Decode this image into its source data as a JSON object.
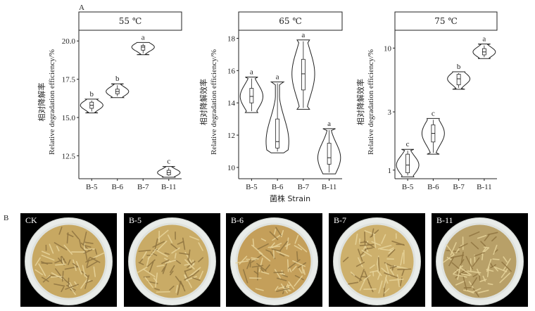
{
  "panel_labels": {
    "a": "A",
    "b": "B"
  },
  "y_axis_label_zh": "相对降解率",
  "y_axis_label_zh_alt": "相对降解效率",
  "y_axis_label_en": "Relative degradation efficiency/%",
  "x_axis_label": "菌株 Strain",
  "colors": {
    "ink": "#222222",
    "box": "#ffffff",
    "photo_bg": "#000000",
    "dish": "#e9ece9"
  },
  "chart_data": [
    {
      "type": "violin",
      "title": "55 ℃",
      "categories": [
        "B-5",
        "B-6",
        "B-7",
        "B-11"
      ],
      "ylim": [
        11.0,
        20.7
      ],
      "yticks": [
        12.5,
        15.0,
        17.5,
        20.0
      ],
      "ytick_labels": [
        "12.5",
        "15.0",
        "17.5",
        "20.0"
      ],
      "ylabel_zh": "相对降解率",
      "series": [
        {
          "category": "B-5",
          "min": 15.3,
          "q1": 15.6,
          "median": 15.8,
          "q3": 16.0,
          "max": 16.2,
          "letter": "b"
        },
        {
          "category": "B-6",
          "min": 16.3,
          "q1": 16.55,
          "median": 16.7,
          "q3": 16.85,
          "max": 17.2,
          "letter": "b"
        },
        {
          "category": "B-7",
          "min": 19.1,
          "q1": 19.4,
          "median": 19.6,
          "q3": 19.7,
          "max": 19.9,
          "letter": "a"
        },
        {
          "category": "B-11",
          "min": 11.1,
          "q1": 11.25,
          "median": 11.4,
          "q3": 11.55,
          "max": 11.8,
          "letter": "c"
        }
      ]
    },
    {
      "type": "violin",
      "title": "65 ℃",
      "categories": [
        "B-5",
        "B-6",
        "B-7",
        "B-11"
      ],
      "ylim": [
        9.3,
        18.5
      ],
      "yticks": [
        10,
        12,
        14,
        16,
        18
      ],
      "ytick_labels": [
        "10",
        "12",
        "14",
        "16",
        "18"
      ],
      "ylabel_zh": "相对降解效率",
      "series": [
        {
          "category": "B-5",
          "min": 13.4,
          "q1": 14.0,
          "median": 14.4,
          "q3": 14.9,
          "max": 15.6,
          "letter": "a"
        },
        {
          "category": "B-6",
          "min": 10.9,
          "q1": 11.2,
          "median": 11.6,
          "q3": 13.0,
          "max": 15.3,
          "letter": "a"
        },
        {
          "category": "B-7",
          "min": 13.6,
          "q1": 14.8,
          "median": 15.8,
          "q3": 16.7,
          "max": 17.9,
          "letter": "a"
        },
        {
          "category": "B-11",
          "min": 9.6,
          "q1": 10.2,
          "median": 10.6,
          "q3": 11.5,
          "max": 12.4,
          "letter": "a"
        }
      ]
    },
    {
      "type": "violin",
      "title": "75 ℃",
      "scale": "log",
      "categories": [
        "B-5",
        "B-6",
        "B-7",
        "B-11"
      ],
      "ylim": [
        0.85,
        14
      ],
      "yticks": [
        1,
        3,
        10
      ],
      "ytick_labels": [
        "1",
        "3",
        "10"
      ],
      "ylabel_zh": "相对降解效率",
      "series": [
        {
          "category": "B-5",
          "min": 0.88,
          "q1": 0.95,
          "median": 1.1,
          "q3": 1.35,
          "max": 1.48,
          "letter": "c"
        },
        {
          "category": "B-6",
          "min": 1.35,
          "q1": 1.7,
          "median": 2.0,
          "q3": 2.35,
          "max": 2.65,
          "letter": "c"
        },
        {
          "category": "B-7",
          "min": 4.6,
          "q1": 5.0,
          "median": 5.6,
          "q3": 6.1,
          "max": 6.4,
          "letter": "b"
        },
        {
          "category": "B-11",
          "min": 8.2,
          "q1": 8.8,
          "median": 9.3,
          "q3": 9.9,
          "max": 10.8,
          "letter": "a"
        }
      ]
    }
  ],
  "photos": [
    {
      "label": "CK",
      "tone": "#c7a862"
    },
    {
      "label": "B-5",
      "tone": "#c9ab66"
    },
    {
      "label": "B-6",
      "tone": "#c49f5a"
    },
    {
      "label": "B-7",
      "tone": "#cdb06c"
    },
    {
      "label": "B-11",
      "tone": "#b8a068"
    }
  ]
}
